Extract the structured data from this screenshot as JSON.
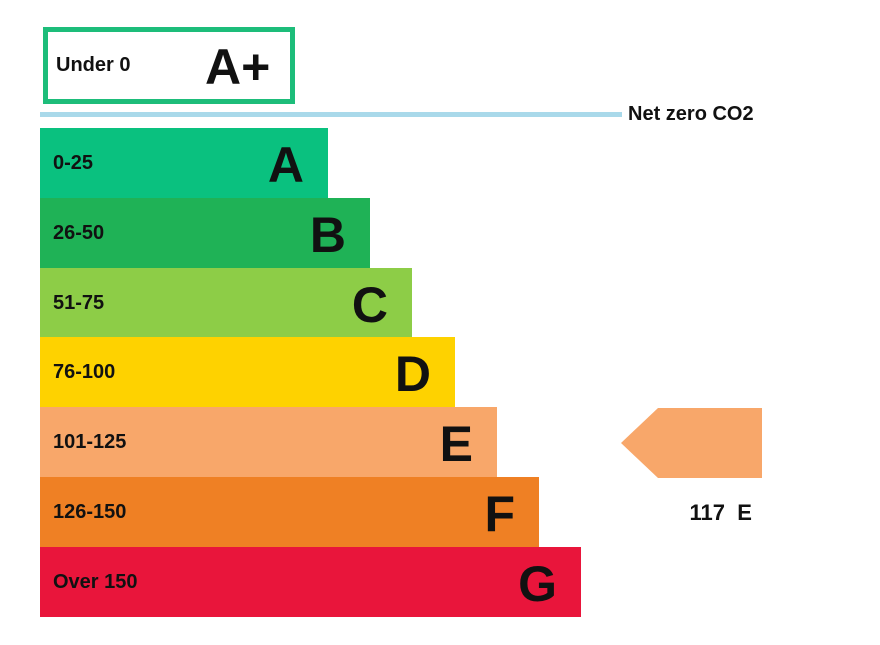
{
  "chart_data": {
    "type": "bar",
    "top_band": {
      "range": "Under 0",
      "rating": "A+",
      "color": "#1dbd7a"
    },
    "net_zero_label": "Net zero CO2",
    "bands": [
      {
        "range": "0-25",
        "rating": "A",
        "color": "#0ac17f"
      },
      {
        "range": "26-50",
        "rating": "B",
        "color": "#1fb256"
      },
      {
        "range": "51-75",
        "rating": "C",
        "color": "#8dcd47"
      },
      {
        "range": "76-100",
        "rating": "D",
        "color": "#fed200"
      },
      {
        "range": "101-125",
        "rating": "E",
        "color": "#f8a76a"
      },
      {
        "range": "126-150",
        "rating": "F",
        "color": "#ef8024"
      },
      {
        "range": "Over 150",
        "rating": "G",
        "color": "#e9153b"
      }
    ],
    "current": {
      "value": "117",
      "rating": "E",
      "color": "#f8a76a"
    }
  }
}
